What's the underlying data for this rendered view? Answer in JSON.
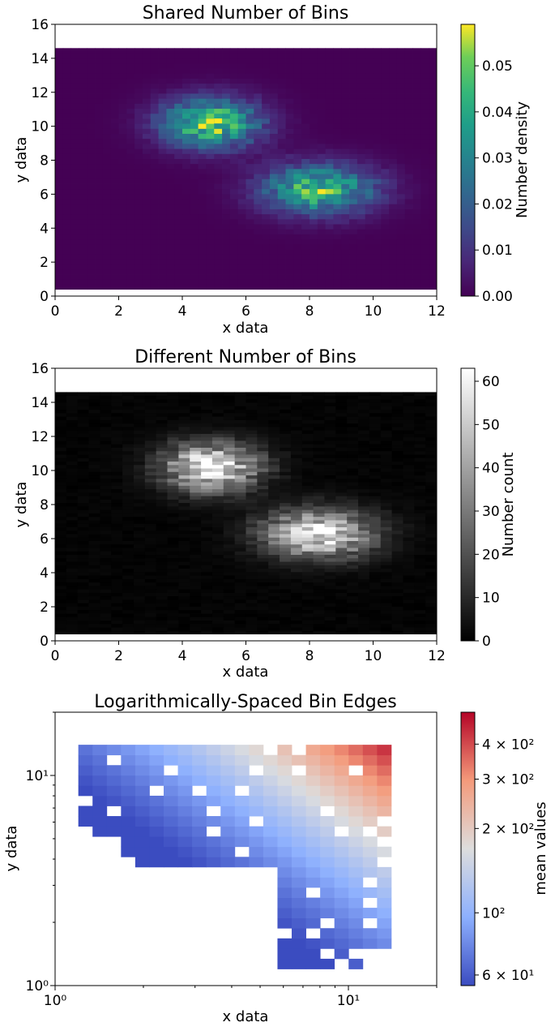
{
  "chart_data": [
    {
      "type": "heatmap",
      "title": "Shared Number of Bins",
      "xlabel": "x data",
      "ylabel": "y data",
      "xlim": [
        0,
        12
      ],
      "ylim": [
        0,
        16
      ],
      "xticks": [
        "0",
        "2",
        "4",
        "6",
        "8",
        "10",
        "12"
      ],
      "yticks": [
        "0",
        "2",
        "4",
        "6",
        "8",
        "10",
        "12",
        "14",
        "16"
      ],
      "data_extent": {
        "x": [
          0,
          12
        ],
        "y": [
          0.4,
          14.6
        ]
      },
      "bins": {
        "nx": 48,
        "ny": 48
      },
      "colormap": "viridis",
      "colorbar": {
        "label": "Number density",
        "ticks": [
          "0.00",
          "0.01",
          "0.02",
          "0.03",
          "0.04",
          "0.05"
        ],
        "range": [
          0,
          0.059
        ]
      },
      "clusters": [
        {
          "center": [
            4.9,
            10.2
          ],
          "sigma": [
            1.05,
            1.0
          ],
          "peak": 0.05
        },
        {
          "center": [
            8.3,
            6.3
          ],
          "sigma": [
            1.2,
            1.0
          ],
          "peak": 0.045
        }
      ]
    },
    {
      "type": "heatmap",
      "title": "Different Number of Bins",
      "xlabel": "x data",
      "ylabel": "y data",
      "xlim": [
        0,
        12
      ],
      "ylim": [
        0,
        16
      ],
      "xticks": [
        "0",
        "2",
        "4",
        "6",
        "8",
        "10",
        "12"
      ],
      "yticks": [
        "0",
        "2",
        "4",
        "6",
        "8",
        "10",
        "12",
        "14",
        "16"
      ],
      "data_extent": {
        "x": [
          0,
          12
        ],
        "y": [
          0.4,
          14.6
        ]
      },
      "bins": {
        "nx": 34,
        "ny": 70
      },
      "colormap": "gray",
      "colorbar": {
        "label": "Number count",
        "ticks": [
          "0",
          "10",
          "20",
          "30",
          "40",
          "50",
          "60"
        ],
        "range": [
          0,
          63
        ]
      },
      "clusters": [
        {
          "center": [
            4.9,
            10.2
          ],
          "sigma": [
            1.05,
            1.0
          ],
          "peak": 58
        },
        {
          "center": [
            8.3,
            6.3
          ],
          "sigma": [
            1.2,
            1.0
          ],
          "peak": 56
        }
      ]
    },
    {
      "type": "heatmap",
      "title": "Logarithmically-Spaced Bin Edges",
      "xlabel": "x data",
      "ylabel": "y data",
      "xscale": "log",
      "yscale": "log",
      "xlim": [
        1,
        20
      ],
      "ylim": [
        1,
        20
      ],
      "xticks": [
        "10⁰",
        "10¹"
      ],
      "yticks": [
        "10⁰",
        "10¹"
      ],
      "colormap": "coolwarm",
      "colorbar": {
        "label": "mean values",
        "scale": "log",
        "range": [
          55,
          520
        ],
        "ticks": [
          "6 × 10¹",
          "10²",
          "2 × 10²",
          "3 × 10²",
          "4 × 10²"
        ]
      }
    }
  ]
}
